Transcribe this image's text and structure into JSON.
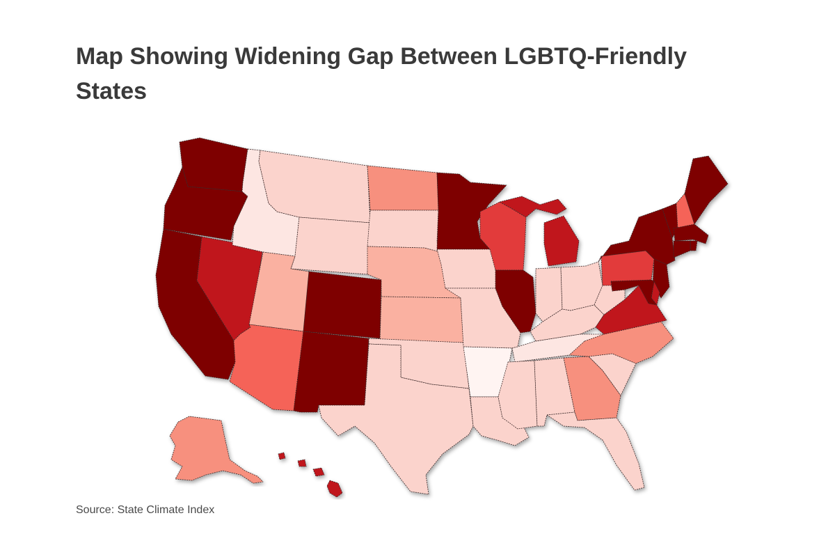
{
  "title": "Map Showing Widening Gap Between LGBTQ-Friendly States",
  "source": "Source: State Climate Index",
  "palette": {
    "t1": "#7e0000",
    "t2": "#c0141e",
    "t3": "#e23a3a",
    "t4": "#f56458",
    "t5": "#f7907e",
    "t6": "#fab1a1",
    "t7": "#fbd3cc",
    "t8": "#fde6e2",
    "t9": "#fff4f2"
  },
  "states": [
    {
      "id": "WA",
      "name": "Washington",
      "tier": "t1"
    },
    {
      "id": "OR",
      "name": "Oregon",
      "tier": "t1"
    },
    {
      "id": "CA",
      "name": "California",
      "tier": "t1"
    },
    {
      "id": "NV",
      "name": "Nevada",
      "tier": "t2"
    },
    {
      "id": "ID",
      "name": "Idaho",
      "tier": "t8"
    },
    {
      "id": "MT",
      "name": "Montana",
      "tier": "t7"
    },
    {
      "id": "WY",
      "name": "Wyoming",
      "tier": "t7"
    },
    {
      "id": "UT",
      "name": "Utah",
      "tier": "t6"
    },
    {
      "id": "AZ",
      "name": "Arizona",
      "tier": "t4"
    },
    {
      "id": "CO",
      "name": "Colorado",
      "tier": "t1"
    },
    {
      "id": "NM",
      "name": "New Mexico",
      "tier": "t1"
    },
    {
      "id": "ND",
      "name": "North Dakota",
      "tier": "t5"
    },
    {
      "id": "SD",
      "name": "South Dakota",
      "tier": "t7"
    },
    {
      "id": "NE",
      "name": "Nebraska",
      "tier": "t6"
    },
    {
      "id": "KS",
      "name": "Kansas",
      "tier": "t6"
    },
    {
      "id": "OK",
      "name": "Oklahoma",
      "tier": "t7"
    },
    {
      "id": "TX",
      "name": "Texas",
      "tier": "t7"
    },
    {
      "id": "MN",
      "name": "Minnesota",
      "tier": "t1"
    },
    {
      "id": "IA",
      "name": "Iowa",
      "tier": "t7"
    },
    {
      "id": "MO",
      "name": "Missouri",
      "tier": "t7"
    },
    {
      "id": "AR",
      "name": "Arkansas",
      "tier": "t9"
    },
    {
      "id": "LA",
      "name": "Louisiana",
      "tier": "t7"
    },
    {
      "id": "WI",
      "name": "Wisconsin",
      "tier": "t3"
    },
    {
      "id": "IL",
      "name": "Illinois",
      "tier": "t1"
    },
    {
      "id": "MI",
      "name": "Michigan",
      "tier": "t2"
    },
    {
      "id": "IN",
      "name": "Indiana",
      "tier": "t7"
    },
    {
      "id": "OH",
      "name": "Ohio",
      "tier": "t7"
    },
    {
      "id": "KY",
      "name": "Kentucky",
      "tier": "t7"
    },
    {
      "id": "TN",
      "name": "Tennessee",
      "tier": "t8"
    },
    {
      "id": "MS",
      "name": "Mississippi",
      "tier": "t7"
    },
    {
      "id": "AL",
      "name": "Alabama",
      "tier": "t7"
    },
    {
      "id": "GA",
      "name": "Georgia",
      "tier": "t5"
    },
    {
      "id": "FL",
      "name": "Florida",
      "tier": "t7"
    },
    {
      "id": "SC",
      "name": "South Carolina",
      "tier": "t7"
    },
    {
      "id": "NC",
      "name": "North Carolina",
      "tier": "t5"
    },
    {
      "id": "VA",
      "name": "Virginia",
      "tier": "t2"
    },
    {
      "id": "WV",
      "name": "West Virginia",
      "tier": "t7"
    },
    {
      "id": "PA",
      "name": "Pennsylvania",
      "tier": "t3"
    },
    {
      "id": "NY",
      "name": "New York",
      "tier": "t1"
    },
    {
      "id": "VT",
      "name": "Vermont",
      "tier": "t1"
    },
    {
      "id": "NH",
      "name": "New Hampshire",
      "tier": "t4"
    },
    {
      "id": "ME",
      "name": "Maine",
      "tier": "t1"
    },
    {
      "id": "MA",
      "name": "Massachusetts",
      "tier": "t1"
    },
    {
      "id": "RI",
      "name": "Rhode Island",
      "tier": "t1"
    },
    {
      "id": "CT",
      "name": "Connecticut",
      "tier": "t1"
    },
    {
      "id": "NJ",
      "name": "New Jersey",
      "tier": "t1"
    },
    {
      "id": "DE",
      "name": "Delaware",
      "tier": "t2"
    },
    {
      "id": "MD",
      "name": "Maryland",
      "tier": "t1"
    },
    {
      "id": "AK",
      "name": "Alaska",
      "tier": "t5"
    },
    {
      "id": "HI",
      "name": "Hawaii",
      "tier": "t2"
    }
  ]
}
